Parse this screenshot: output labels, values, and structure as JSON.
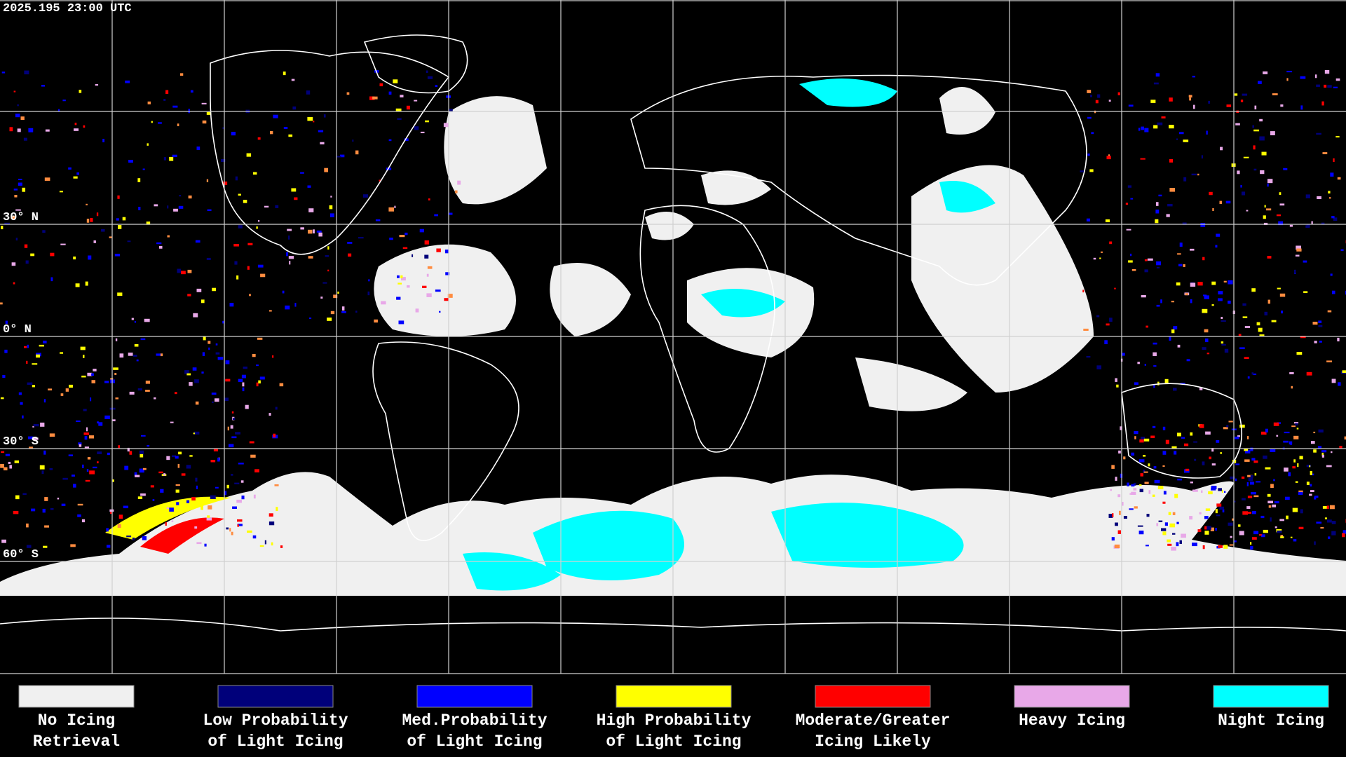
{
  "header": {
    "timestamp": "2025.195 23:00 UTC"
  },
  "map": {
    "latitude_labels": [
      "30° N",
      "0° N",
      "30° S",
      "60° S"
    ]
  },
  "legend": {
    "items": [
      {
        "color": "#f0f0f0",
        "lines": [
          "No Icing",
          "Retrieval"
        ]
      },
      {
        "color": "#00007a",
        "lines": [
          "Low Probability",
          "of Light Icing"
        ]
      },
      {
        "color": "#0000ff",
        "lines": [
          "Med.Probability",
          "of Light Icing"
        ]
      },
      {
        "color": "#ffff00",
        "lines": [
          "High Probability",
          "of Light Icing"
        ]
      },
      {
        "color": "#ff0000",
        "lines": [
          "Moderate/Greater",
          "Icing Likely"
        ]
      },
      {
        "color": "#e8a8e8",
        "lines": [
          "Heavy Icing"
        ]
      },
      {
        "color": "#00ffff",
        "lines": [
          "Night Icing"
        ]
      }
    ]
  }
}
